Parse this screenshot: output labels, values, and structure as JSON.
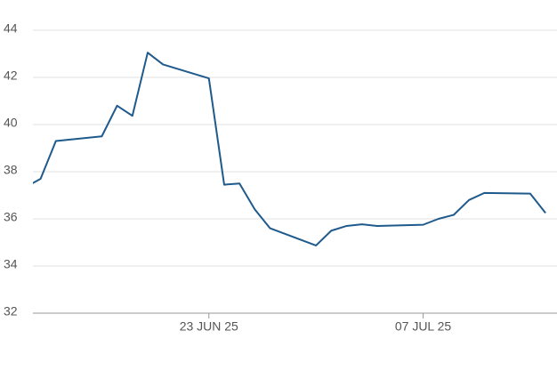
{
  "chart_data": {
    "type": "line",
    "x": [
      "2025-06-11",
      "2025-06-12",
      "2025-06-13",
      "2025-06-16",
      "2025-06-17",
      "2025-06-18",
      "2025-06-19",
      "2025-06-20",
      "2025-06-23",
      "2025-06-24",
      "2025-06-25",
      "2025-06-26",
      "2025-06-27",
      "2025-06-30",
      "2025-07-01",
      "2025-07-02",
      "2025-07-03",
      "2025-07-04",
      "2025-07-07",
      "2025-07-08",
      "2025-07-09",
      "2025-07-10",
      "2025-07-11",
      "2025-07-14",
      "2025-07-15"
    ],
    "series": [
      {
        "color": "#1f5a8c",
        "values": [
          37.34,
          37.7,
          39.3,
          39.5,
          40.8,
          40.37,
          43.05,
          42.55,
          41.96,
          37.45,
          37.5,
          36.4,
          35.6,
          34.87,
          35.5,
          35.7,
          35.77,
          35.7,
          35.75,
          36.0,
          36.17,
          36.8,
          37.1,
          37.07,
          36.25
        ]
      }
    ],
    "xlim": [
      "2025-06-11T12:00",
      "2025-07-15T18:00"
    ],
    "xticks": [
      {
        "value": "2025-06-23",
        "label": "23 JUN 25"
      },
      {
        "value": "2025-07-07",
        "label": "07 JUL 25"
      }
    ],
    "ylim": [
      32,
      44
    ],
    "yticks": [
      32,
      34,
      36,
      38,
      40,
      42,
      44
    ],
    "grid": true
  }
}
